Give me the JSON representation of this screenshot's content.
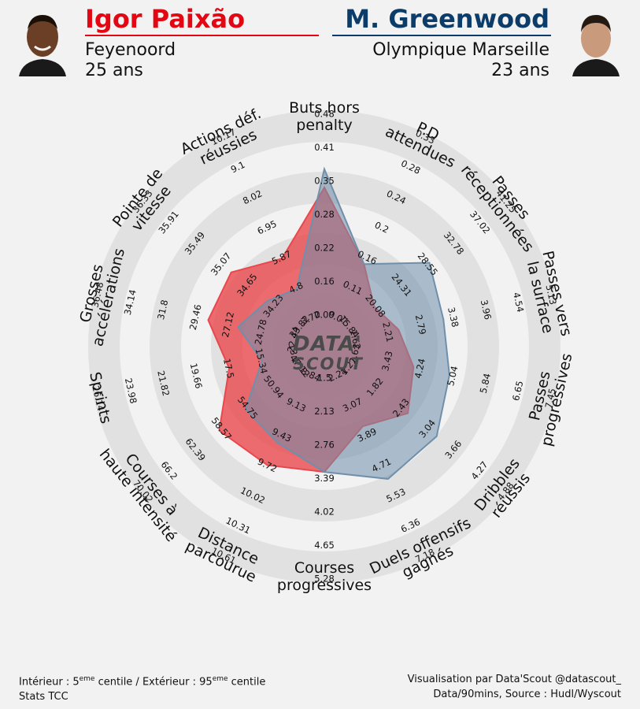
{
  "players": {
    "left": {
      "name": "Igor Paixão",
      "club": "Feyenoord",
      "age": "25 ans",
      "color": "#e30613",
      "fill": "#e8484d"
    },
    "right": {
      "name": "M. Greenwood",
      "club": "Olympique Marseille",
      "age": "23 ans",
      "color": "#0b3c6a",
      "fill": "#6f8fab"
    }
  },
  "logo": {
    "line1": "DATA'",
    "line2": "SCOUT"
  },
  "footer": {
    "left_line1_a": "Intérieur : 5",
    "left_line1_sup1": "eme",
    "left_line1_b": " centile / Extérieur : 95",
    "left_line1_sup2": "eme",
    "left_line1_c": " centile",
    "left_line2": "Stats TCC",
    "right_line1": "Visualisation par Data'Scout @datascout_",
    "right_line2": "Data/90mins, Source : Hudl/Wyscout"
  },
  "chart_data": {
    "type": "radar",
    "ring_colors": {
      "band": "#e1e1e1",
      "inner": "#e9e9e9"
    },
    "metrics": [
      {
        "label": [
          "Buts hors",
          "penalty"
        ],
        "ticks": [
          "0.09",
          "0.16",
          "0.22",
          "0.28",
          "0.35",
          "0.41",
          "0.48"
        ]
      },
      {
        "label": [
          "P.D",
          "attendues"
        ],
        "ticks": [
          "0.07",
          "0.11",
          "0.16",
          "0.2",
          "0.24",
          "0.28",
          "0.33"
        ]
      },
      {
        "label": [
          "Passes",
          "réceptionnées"
        ],
        "ticks": [
          "15.84",
          "20.08",
          "24.31",
          "28.55",
          "32.78",
          "37.02",
          "41.25"
        ]
      },
      {
        "label": [
          "Passes vers",
          "la surface"
        ],
        "ticks": [
          "1.62",
          "2.21",
          "2.79",
          "3.38",
          "3.96",
          "4.54",
          "5.13"
        ]
      },
      {
        "label": [
          "Passes",
          "progressives"
        ],
        "ticks": [
          "2.63",
          "3.43",
          "4.24",
          "5.04",
          "5.84",
          "6.65",
          "7.45"
        ]
      },
      {
        "label": [
          "Dribbles",
          "réussis"
        ],
        "ticks": [
          "1.21",
          "1.82",
          "2.43",
          "3.04",
          "3.66",
          "4.27",
          "4.88"
        ]
      },
      {
        "label": [
          "Duels offensifs",
          "gagnés"
        ],
        "ticks": [
          "2.24",
          "3.07",
          "3.89",
          "4.71",
          "5.53",
          "6.36",
          "7.18"
        ]
      },
      {
        "label": [
          "Courses",
          "progressives"
        ],
        "ticks": [
          "1.5",
          "2.13",
          "2.76",
          "3.39",
          "4.02",
          "4.65",
          "5.28"
        ]
      },
      {
        "label": [
          "Distance",
          "parcourue"
        ],
        "ticks": [
          "8.84",
          "9.13",
          "9.43",
          "9.72",
          "10.02",
          "10.31",
          "10.61"
        ]
      },
      {
        "label": [
          "Courses à",
          "haute intensité"
        ],
        "ticks": [
          "47.12",
          "50.94",
          "54.75",
          "58.57",
          "62.39",
          "66.2",
          "70.02"
        ]
      },
      {
        "label": [
          "Sprints"
        ],
        "ticks": [
          "13.1",
          "15.34",
          "17.5",
          "19.66",
          "21.82",
          "23.98",
          "26.14"
        ]
      },
      {
        "label": [
          "Grosses",
          "accélérations"
        ],
        "ticks": [
          "22.44",
          "24.78",
          "27.12",
          "29.46",
          "31.8",
          "34.14",
          "36.48"
        ]
      },
      {
        "label": [
          "Pointe de",
          "vitesse"
        ],
        "ticks": [
          "33.82",
          "34.23",
          "34.65",
          "35.07",
          "35.49",
          "35.91",
          "36.33"
        ]
      },
      {
        "label": [
          "Actions déf.",
          "réussies"
        ],
        "ticks": [
          "3.72",
          "4.8",
          "5.87",
          "6.95",
          "8.02",
          "9.1",
          "10.17"
        ]
      }
    ],
    "scale_min": 0,
    "scale_max": 7,
    "series": [
      {
        "name": "Igor Paixão",
        "color": "#e8484d",
        "values": [
          5.0,
          2.8,
          1.9,
          2.3,
          2.8,
          3.3,
          2.7,
          3.9,
          4.1,
          4.2,
          3.0,
          3.7,
          3.7,
          3.0
        ]
      },
      {
        "name": "M. Greenwood",
        "color": "#6f8fab",
        "values": [
          5.6,
          2.8,
          4.2,
          3.8,
          4.0,
          4.5,
          4.6,
          3.9,
          3.3,
          3.1,
          1.9,
          2.7,
          2.2,
          1.9
        ]
      }
    ]
  }
}
